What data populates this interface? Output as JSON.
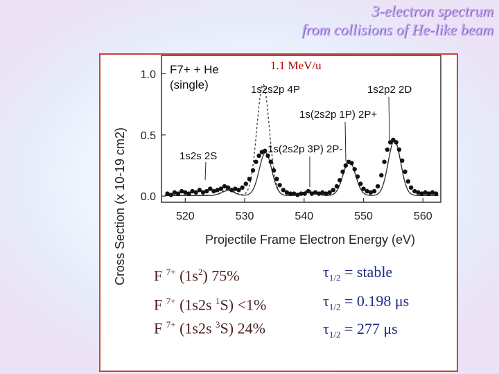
{
  "slide": {
    "title_line1": "3-electron spectrum",
    "title_line2": "from collisions of He-like beam",
    "energy": "1.1 MeV/u"
  },
  "plot": {
    "system": "F7+ + He",
    "system_note": "(single)",
    "ylabel": "Cross Section (x 10-19 cm2)",
    "xlabel": "Projectile Frame Electron Energy (eV)",
    "xticks": [
      "520",
      "530",
      "540",
      "550",
      "560"
    ],
    "yticks": [
      "0.0",
      "0.5",
      "1.0"
    ],
    "peak_labels": [
      "1s2s 2S",
      "1s2s2p 4P",
      "1s(2s2p 3P) 2P-",
      "1s(2s2p 1P) 2P+",
      "1s2p2 2D"
    ]
  },
  "chart_data": {
    "type": "line",
    "xlabel": "Projectile Frame Electron Energy (eV)",
    "ylabel": "Cross Section (x 10-19 cm2)",
    "xlim": [
      516,
      563
    ],
    "ylim": [
      -0.05,
      1.15
    ],
    "series": [
      {
        "name": "dashed",
        "style": "dashed",
        "peaks": [
          [
            527.2,
            0.05
          ],
          [
            533.1,
            0.91
          ],
          [
            540.8,
            0.04
          ],
          [
            547.6,
            0.28
          ],
          [
            555.2,
            0.45
          ]
        ]
      },
      {
        "name": "solid",
        "style": "solid",
        "peaks": [
          [
            527.2,
            0.04
          ],
          [
            533.5,
            0.35
          ],
          [
            540.8,
            0.03
          ],
          [
            547.6,
            0.28
          ],
          [
            555.2,
            0.45
          ]
        ]
      }
    ],
    "points": [
      [
        517.0,
        0.02
      ],
      [
        517.6,
        0.01
      ],
      [
        518.2,
        0.03
      ],
      [
        518.8,
        0.02
      ],
      [
        519.4,
        0.04
      ],
      [
        520.0,
        0.03
      ],
      [
        520.6,
        0.02
      ],
      [
        521.2,
        0.04
      ],
      [
        521.8,
        0.03
      ],
      [
        522.4,
        0.05
      ],
      [
        523.0,
        0.03
      ],
      [
        523.6,
        0.04
      ],
      [
        524.2,
        0.06
      ],
      [
        524.8,
        0.04
      ],
      [
        525.4,
        0.05
      ],
      [
        526.0,
        0.06
      ],
      [
        526.6,
        0.08
      ],
      [
        527.2,
        0.07
      ],
      [
        527.8,
        0.05
      ],
      [
        528.4,
        0.06
      ],
      [
        529.0,
        0.05
      ],
      [
        529.6,
        0.07
      ],
      [
        530.2,
        0.1
      ],
      [
        530.8,
        0.14
      ],
      [
        531.4,
        0.21
      ],
      [
        531.9,
        0.28
      ],
      [
        532.4,
        0.33
      ],
      [
        532.9,
        0.36
      ],
      [
        533.4,
        0.37
      ],
      [
        533.9,
        0.33
      ],
      [
        534.4,
        0.28
      ],
      [
        534.9,
        0.21
      ],
      [
        535.4,
        0.14
      ],
      [
        535.9,
        0.09
      ],
      [
        536.5,
        0.05
      ],
      [
        537.1,
        0.03
      ],
      [
        537.7,
        0.02
      ],
      [
        538.3,
        0.02
      ],
      [
        538.9,
        0.01
      ],
      [
        539.5,
        0.02
      ],
      [
        540.1,
        0.02
      ],
      [
        540.7,
        0.04
      ],
      [
        541.3,
        0.02
      ],
      [
        541.9,
        0.03
      ],
      [
        542.5,
        0.02
      ],
      [
        543.1,
        0.03
      ],
      [
        543.7,
        0.02
      ],
      [
        544.3,
        0.03
      ],
      [
        544.9,
        0.05
      ],
      [
        545.5,
        0.08
      ],
      [
        546.0,
        0.13
      ],
      [
        546.5,
        0.2
      ],
      [
        547.0,
        0.25
      ],
      [
        547.5,
        0.28
      ],
      [
        548.0,
        0.27
      ],
      [
        548.5,
        0.22
      ],
      [
        549.0,
        0.16
      ],
      [
        549.5,
        0.1
      ],
      [
        550.0,
        0.06
      ],
      [
        550.6,
        0.04
      ],
      [
        551.2,
        0.03
      ],
      [
        551.8,
        0.04
      ],
      [
        552.4,
        0.08
      ],
      [
        553.0,
        0.17
      ],
      [
        553.5,
        0.28
      ],
      [
        554.0,
        0.38
      ],
      [
        554.5,
        0.44
      ],
      [
        555.0,
        0.46
      ],
      [
        555.5,
        0.44
      ],
      [
        556.0,
        0.38
      ],
      [
        556.5,
        0.29
      ],
      [
        557.0,
        0.2
      ],
      [
        557.5,
        0.12
      ],
      [
        558.0,
        0.07
      ],
      [
        558.6,
        0.04
      ],
      [
        559.2,
        0.03
      ],
      [
        559.8,
        0.02
      ],
      [
        560.4,
        0.03
      ],
      [
        561.0,
        0.02
      ],
      [
        561.6,
        0.03
      ],
      [
        562.2,
        0.02
      ]
    ]
  },
  "states": [
    {
      "ion": "F",
      "charge": "7+",
      "config": "(1s",
      "sup": "2",
      "rest": ") 75%"
    },
    {
      "ion": "F",
      "charge": "7+",
      "config": "(1s2s ",
      "sup": "1",
      "rest": "S) <1%"
    },
    {
      "ion": "F",
      "charge": "7+",
      "config": "(1s2s ",
      "sup": "3",
      "rest": "S) 24%"
    }
  ],
  "lifetimes": [
    {
      "sym": "τ",
      "sub": "1/2",
      "val": " = stable"
    },
    {
      "sym": "τ",
      "sub": "1/2",
      "val": " = 0.198 μs"
    },
    {
      "sym": "τ",
      "sub": "1/2",
      "val": " = 277 μs"
    }
  ],
  "colors": {
    "frame": "#c8453b",
    "state_text": "#4a1d1d",
    "lifetime_text": "#1f2a88",
    "title": "#c9a8ff",
    "energy": "#b00000"
  }
}
